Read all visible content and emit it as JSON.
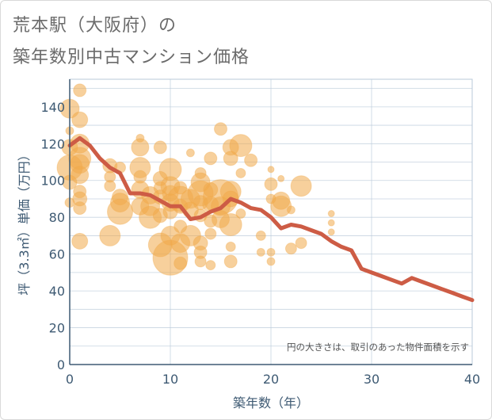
{
  "title_line1": "荒本駅（大阪府）の",
  "title_line2": "築年数別中古マンション価格",
  "chart_data": {
    "type": "scatter",
    "xlabel": "築年数（年）",
    "ylabel": "坪（3.3㎡）単価（万円）",
    "xlim": [
      0,
      40
    ],
    "ylim": [
      0,
      155
    ],
    "xticks": [
      0,
      10,
      20,
      30,
      40
    ],
    "yticks": [
      0,
      20,
      40,
      60,
      80,
      100,
      120,
      140
    ],
    "grid": true,
    "note": "円の大きさは、取引のあった物件面積を示す",
    "colors": {
      "bubble": "#f0a94a",
      "line": "#cd5c45",
      "axis": "#3e5a73",
      "grid": "#b9c9da"
    },
    "trend_line": {
      "x": [
        0,
        1,
        2,
        3,
        4,
        5,
        6,
        7,
        8,
        9,
        10,
        11,
        12,
        13,
        14,
        15,
        16,
        17,
        18,
        19,
        20,
        21,
        22,
        23,
        24,
        25,
        26,
        27,
        28,
        29,
        30,
        31,
        32,
        33,
        34,
        35,
        36,
        37,
        38,
        39,
        40
      ],
      "y": [
        119,
        123,
        119,
        112,
        107,
        104,
        93,
        93,
        92,
        89,
        86,
        86,
        79,
        80,
        83,
        85,
        90,
        88,
        85,
        84,
        80,
        74,
        76,
        75,
        73,
        71,
        67,
        64,
        62,
        52,
        50,
        48,
        46,
        44,
        47,
        45,
        43,
        41,
        39,
        37,
        35
      ]
    },
    "bubbles": [
      {
        "x": 0,
        "y": 139,
        "s": 12
      },
      {
        "x": 0,
        "y": 118,
        "s": 10
      },
      {
        "x": 0,
        "y": 107,
        "s": 16
      },
      {
        "x": 0,
        "y": 99,
        "s": 9
      },
      {
        "x": 0,
        "y": 88,
        "s": 6
      },
      {
        "x": 0,
        "y": 127,
        "s": 5
      },
      {
        "x": 1,
        "y": 149,
        "s": 8
      },
      {
        "x": 1,
        "y": 133,
        "s": 10
      },
      {
        "x": 1,
        "y": 120,
        "s": 12
      },
      {
        "x": 1,
        "y": 112,
        "s": 14
      },
      {
        "x": 1,
        "y": 109,
        "s": 12
      },
      {
        "x": 1,
        "y": 103,
        "s": 11
      },
      {
        "x": 1,
        "y": 94,
        "s": 8
      },
      {
        "x": 1,
        "y": 90,
        "s": 9
      },
      {
        "x": 1,
        "y": 85,
        "s": 8
      },
      {
        "x": 1,
        "y": 67,
        "s": 10
      },
      {
        "x": 4,
        "y": 108,
        "s": 9
      },
      {
        "x": 4,
        "y": 102,
        "s": 7
      },
      {
        "x": 4,
        "y": 97,
        "s": 7
      },
      {
        "x": 4,
        "y": 70,
        "s": 13
      },
      {
        "x": 5,
        "y": 91,
        "s": 10
      },
      {
        "x": 5,
        "y": 88,
        "s": 12
      },
      {
        "x": 5,
        "y": 83,
        "s": 16
      },
      {
        "x": 5,
        "y": 107,
        "s": 7
      },
      {
        "x": 7,
        "y": 123,
        "s": 5
      },
      {
        "x": 7,
        "y": 118,
        "s": 11
      },
      {
        "x": 7,
        "y": 107,
        "s": 13
      },
      {
        "x": 7,
        "y": 102,
        "s": 8
      },
      {
        "x": 7,
        "y": 95,
        "s": 11
      },
      {
        "x": 7,
        "y": 86,
        "s": 11
      },
      {
        "x": 8,
        "y": 92,
        "s": 11
      },
      {
        "x": 8,
        "y": 86,
        "s": 12
      },
      {
        "x": 8,
        "y": 80,
        "s": 14
      },
      {
        "x": 9,
        "y": 118,
        "s": 8
      },
      {
        "x": 9,
        "y": 101,
        "s": 9
      },
      {
        "x": 9,
        "y": 96,
        "s": 8
      },
      {
        "x": 9,
        "y": 91,
        "s": 9
      },
      {
        "x": 9,
        "y": 81,
        "s": 9
      },
      {
        "x": 9,
        "y": 65,
        "s": 15
      },
      {
        "x": 10,
        "y": 106,
        "s": 14
      },
      {
        "x": 10,
        "y": 97,
        "s": 12
      },
      {
        "x": 10,
        "y": 93,
        "s": 10
      },
      {
        "x": 10,
        "y": 88,
        "s": 11
      },
      {
        "x": 10,
        "y": 83,
        "s": 9
      },
      {
        "x": 10,
        "y": 70,
        "s": 12
      },
      {
        "x": 10,
        "y": 58,
        "s": 22
      },
      {
        "x": 11,
        "y": 96,
        "s": 8
      },
      {
        "x": 11,
        "y": 90,
        "s": 16
      },
      {
        "x": 11,
        "y": 86,
        "s": 9
      },
      {
        "x": 11,
        "y": 75,
        "s": 8
      },
      {
        "x": 11,
        "y": 66,
        "s": 12
      },
      {
        "x": 11,
        "y": 55,
        "s": 8
      },
      {
        "x": 12,
        "y": 115,
        "s": 5
      },
      {
        "x": 12,
        "y": 90,
        "s": 12
      },
      {
        "x": 12,
        "y": 84,
        "s": 10
      },
      {
        "x": 12,
        "y": 70,
        "s": 13
      },
      {
        "x": 13,
        "y": 104,
        "s": 7
      },
      {
        "x": 13,
        "y": 99,
        "s": 12
      },
      {
        "x": 13,
        "y": 93,
        "s": 16
      },
      {
        "x": 13,
        "y": 88,
        "s": 9
      },
      {
        "x": 13,
        "y": 81,
        "s": 8
      },
      {
        "x": 13,
        "y": 66,
        "s": 9
      },
      {
        "x": 13,
        "y": 61,
        "s": 8
      },
      {
        "x": 13,
        "y": 56,
        "s": 7
      },
      {
        "x": 14,
        "y": 112,
        "s": 8
      },
      {
        "x": 14,
        "y": 95,
        "s": 9
      },
      {
        "x": 14,
        "y": 87,
        "s": 10
      },
      {
        "x": 14,
        "y": 78,
        "s": 8
      },
      {
        "x": 14,
        "y": 71,
        "s": 7
      },
      {
        "x": 14,
        "y": 54,
        "s": 6
      },
      {
        "x": 15,
        "y": 128,
        "s": 8
      },
      {
        "x": 15,
        "y": 91,
        "s": 22
      },
      {
        "x": 15,
        "y": 86,
        "s": 12
      },
      {
        "x": 15,
        "y": 79,
        "s": 11
      },
      {
        "x": 16,
        "y": 118,
        "s": 10
      },
      {
        "x": 16,
        "y": 112,
        "s": 9
      },
      {
        "x": 16,
        "y": 94,
        "s": 13
      },
      {
        "x": 16,
        "y": 90,
        "s": 10
      },
      {
        "x": 16,
        "y": 76,
        "s": 14
      },
      {
        "x": 16,
        "y": 64,
        "s": 6
      },
      {
        "x": 16,
        "y": 56,
        "s": 8
      },
      {
        "x": 17,
        "y": 119,
        "s": 14
      },
      {
        "x": 17,
        "y": 104,
        "s": 6
      },
      {
        "x": 17,
        "y": 82,
        "s": 6
      },
      {
        "x": 18,
        "y": 111,
        "s": 8
      },
      {
        "x": 19,
        "y": 70,
        "s": 6
      },
      {
        "x": 19,
        "y": 61,
        "s": 5
      },
      {
        "x": 20,
        "y": 106,
        "s": 4
      },
      {
        "x": 20,
        "y": 98,
        "s": 8
      },
      {
        "x": 20,
        "y": 90,
        "s": 6
      },
      {
        "x": 20,
        "y": 61,
        "s": 5
      },
      {
        "x": 20,
        "y": 56,
        "s": 5
      },
      {
        "x": 21,
        "y": 101,
        "s": 4
      },
      {
        "x": 21,
        "y": 89,
        "s": 11
      },
      {
        "x": 21,
        "y": 86,
        "s": 13
      },
      {
        "x": 22,
        "y": 84,
        "s": 5
      },
      {
        "x": 22,
        "y": 63,
        "s": 7
      },
      {
        "x": 23,
        "y": 97,
        "s": 13
      },
      {
        "x": 23,
        "y": 66,
        "s": 7
      },
      {
        "x": 26,
        "y": 82,
        "s": 4
      },
      {
        "x": 26,
        "y": 77,
        "s": 4
      },
      {
        "x": 26,
        "y": 72,
        "s": 4
      }
    ]
  }
}
